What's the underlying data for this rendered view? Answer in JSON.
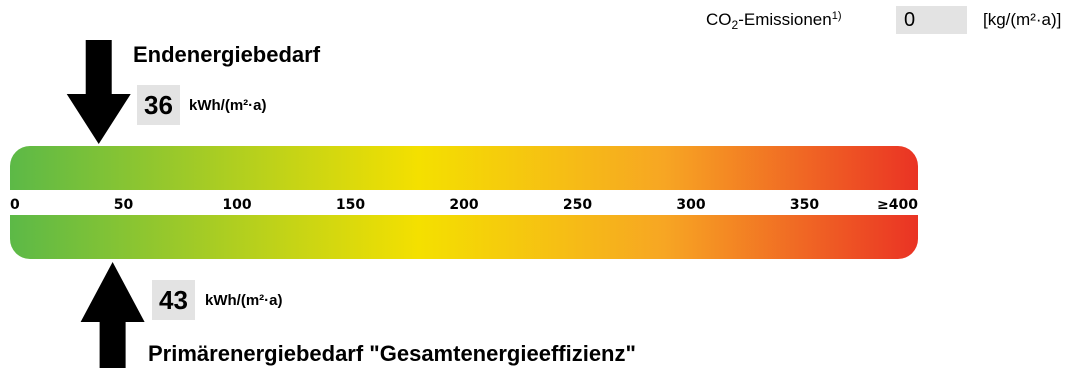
{
  "chart_data": {
    "type": "energy-scale",
    "scale": {
      "min": 0,
      "max": 400,
      "ticks": [
        0,
        50,
        100,
        150,
        200,
        250,
        300,
        350,
        400
      ],
      "tick_labels": [
        "0",
        "50",
        "100",
        "150",
        "200",
        "250",
        "300",
        "350",
        "≥400"
      ],
      "gradient_colors": [
        "#5cb947",
        "#f4e000",
        "#f7a623",
        "#ea3324"
      ]
    },
    "final_energy": {
      "label": "Endenergiebedarf",
      "value": 36,
      "value_text": "36",
      "unit": "kWh/(m²·a)"
    },
    "primary_energy": {
      "label": "Primärenergiebedarf \"Gesamtenergieeffizienz\"",
      "value": 43,
      "value_text": "43",
      "unit": "kWh/(m²·a)"
    },
    "co2": {
      "label_prefix": "CO",
      "label_sub": "2",
      "label_suffix": "-Emissionen",
      "label_sup": "1)",
      "value": "0",
      "unit": "[kg/(m²·a)]"
    }
  }
}
